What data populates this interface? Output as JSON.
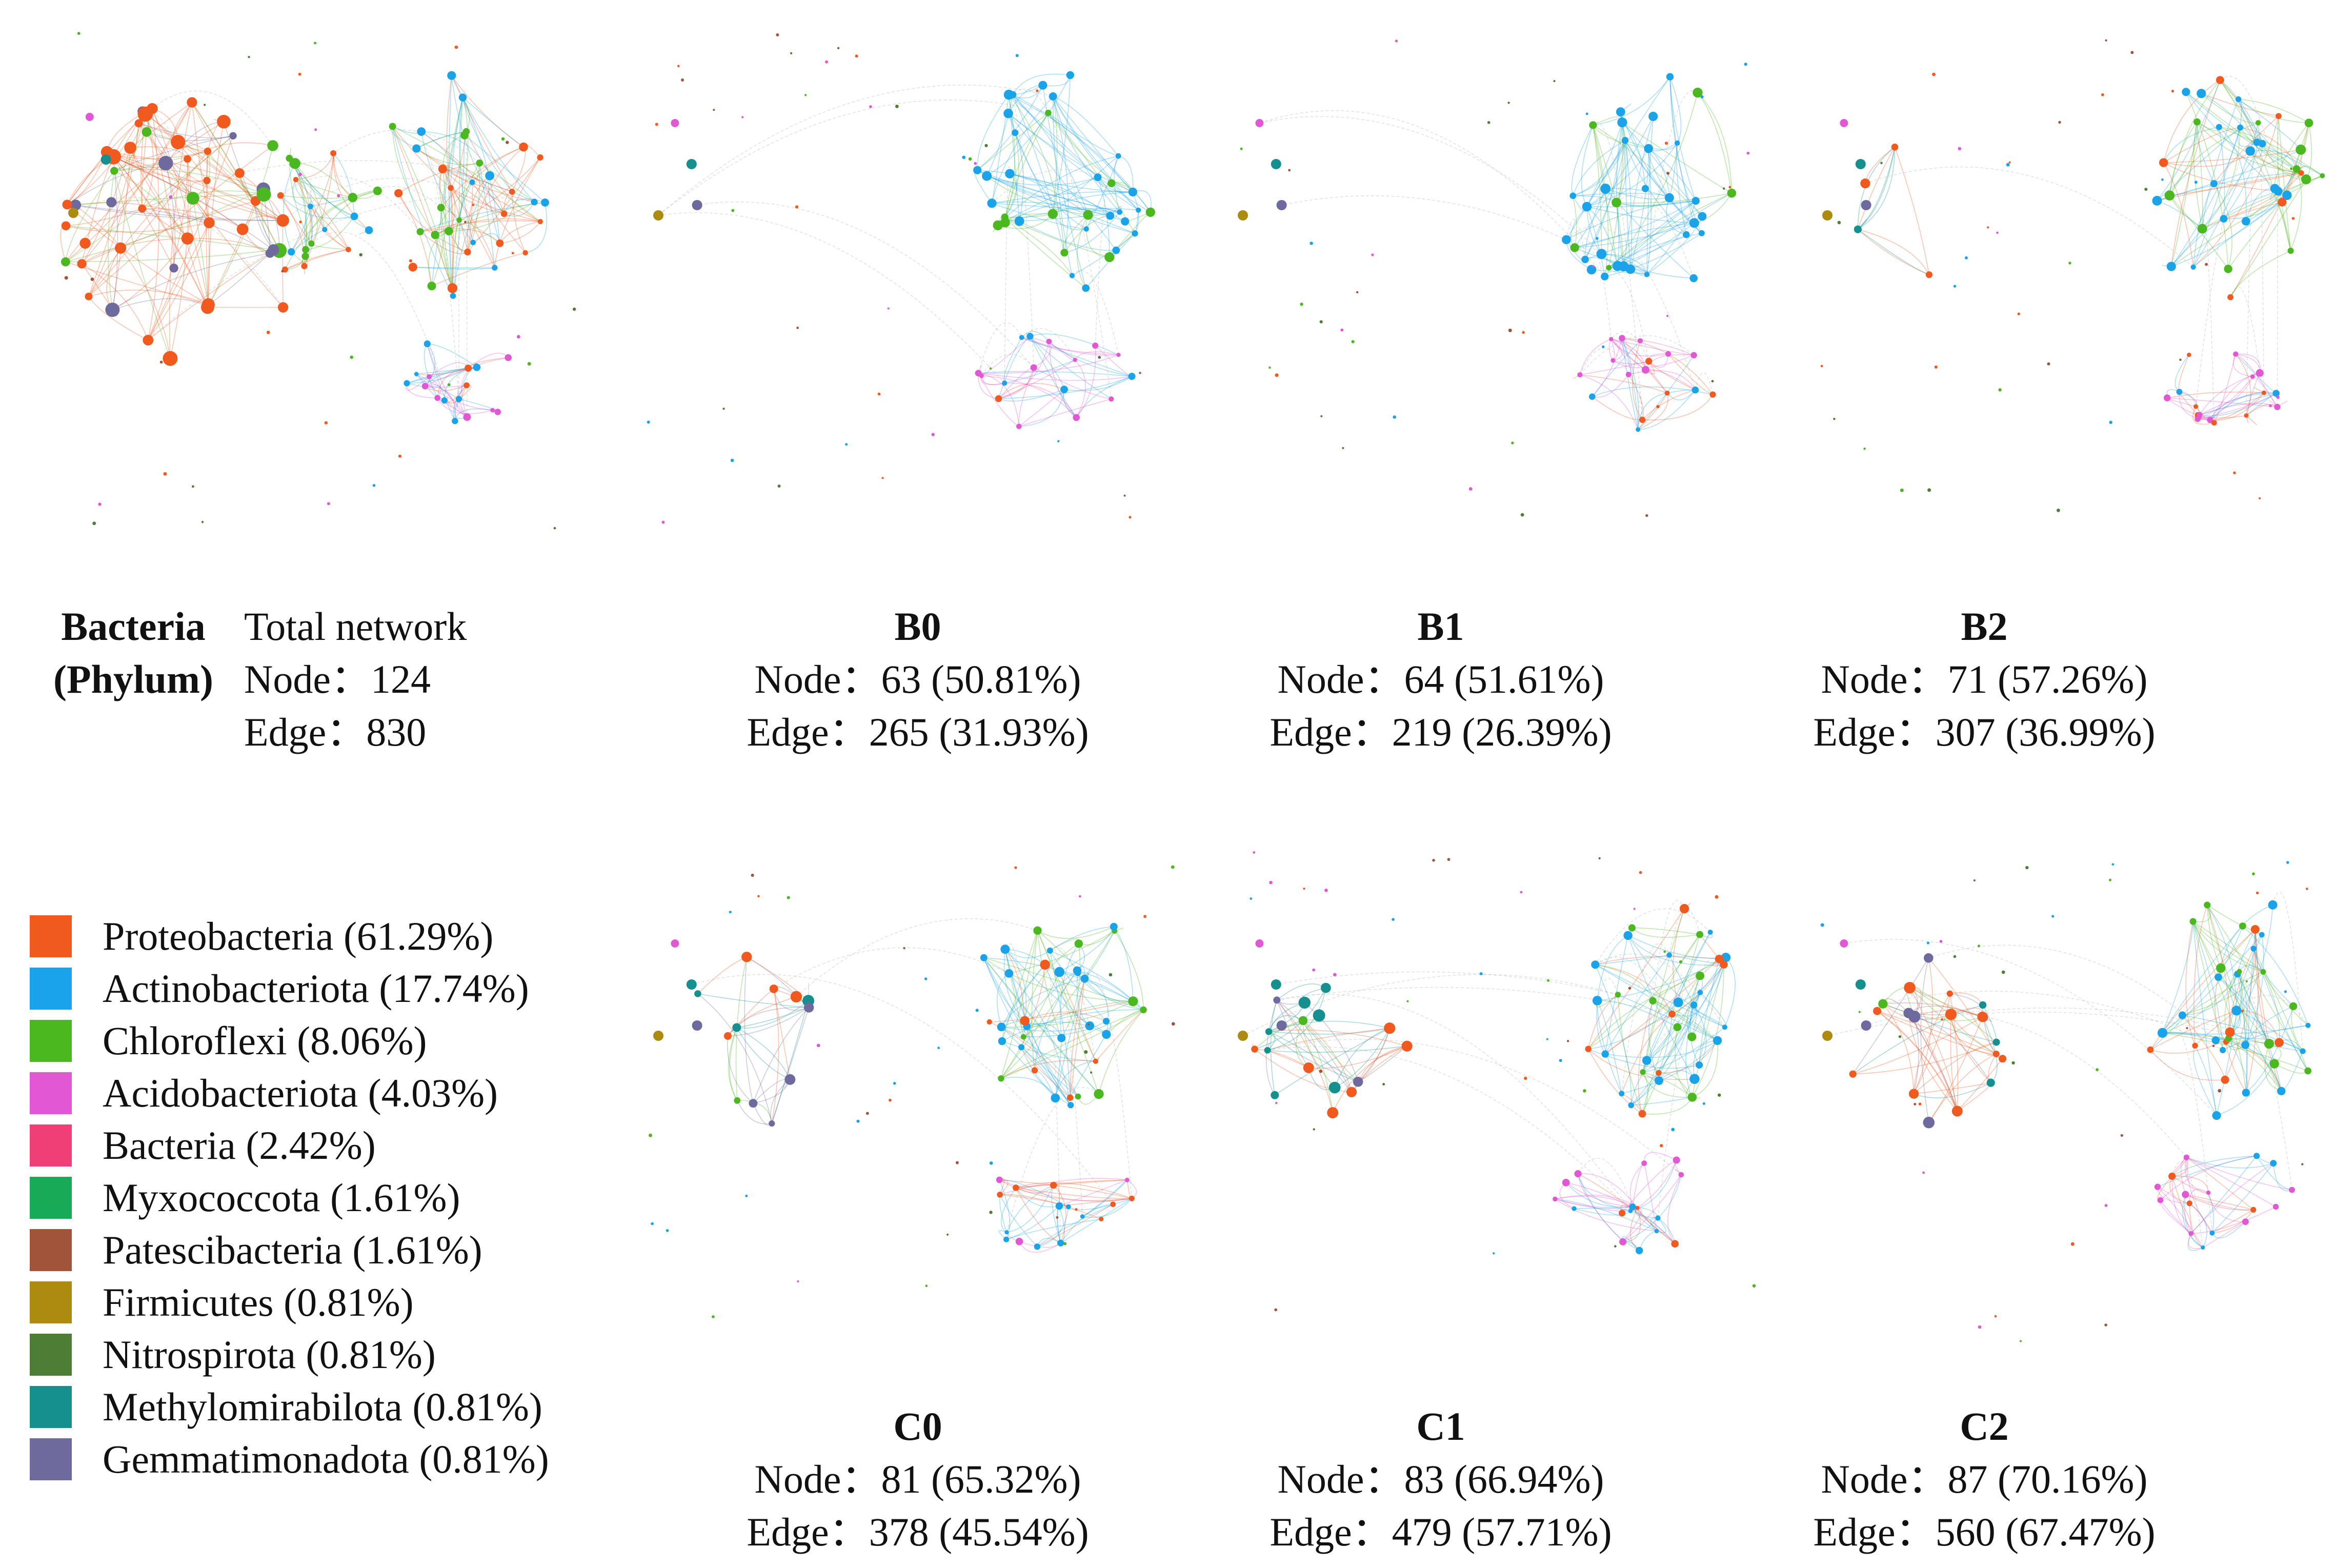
{
  "figure": {
    "group": {
      "line1": "Bacteria",
      "line2": "(Phylum)"
    },
    "panels": [
      {
        "id": "total",
        "title": "Total network",
        "node_label": "Node：",
        "node_value": "124",
        "edge_label": "Edge：",
        "edge_value": "830"
      },
      {
        "id": "B0",
        "title": "B0",
        "node_label": "Node：",
        "node_value": "63 (50.81%)",
        "edge_label": "Edge：",
        "edge_value": "265 (31.93%)"
      },
      {
        "id": "B1",
        "title": "B1",
        "node_label": "Node：",
        "node_value": "64 (51.61%)",
        "edge_label": "Edge：",
        "edge_value": "219 (26.39%)"
      },
      {
        "id": "B2",
        "title": "B2",
        "node_label": "Node：",
        "node_value": "71 (57.26%)",
        "edge_label": "Edge：",
        "edge_value": "307 (36.99%)"
      },
      {
        "id": "C0",
        "title": "C0",
        "node_label": "Node：",
        "node_value": "81 (65.32%)",
        "edge_label": "Edge：",
        "edge_value": "378 (45.54%)"
      },
      {
        "id": "C1",
        "title": "C1",
        "node_label": "Node：",
        "node_value": "83 (66.94%)",
        "edge_label": "Edge：",
        "edge_value": "479 (57.71%)"
      },
      {
        "id": "C2",
        "title": "C2",
        "node_label": "Node：",
        "node_value": "87 (70.16%)",
        "edge_label": "Edge：",
        "edge_value": "560 (67.47%)"
      }
    ]
  },
  "legend": [
    {
      "label": "Proteobacteria (61.29%)",
      "color": "#f15a1f"
    },
    {
      "label": "Actinobacteriota (17.74%)",
      "color": "#1aa3e8"
    },
    {
      "label": "Chloroflexi (8.06%)",
      "color": "#4cb81f"
    },
    {
      "label": "Acidobacteriota (4.03%)",
      "color": "#e157d4"
    },
    {
      "label": "Bacteria (2.42%)",
      "color": "#ef3f76"
    },
    {
      "label": "Myxococcota (1.61%)",
      "color": "#18aa57"
    },
    {
      "label": "Patescibacteria (1.61%)",
      "color": "#a0553a"
    },
    {
      "label": "Firmicutes (0.81%)",
      "color": "#ad8a10"
    },
    {
      "label": "Nitrospirota (0.81%)",
      "color": "#4e7e35"
    },
    {
      "label": "Methylomirabilota (0.81%)",
      "color": "#15908e"
    },
    {
      "label": "Gemmatimonadota (0.81%)",
      "color": "#6f6a9e"
    }
  ]
}
